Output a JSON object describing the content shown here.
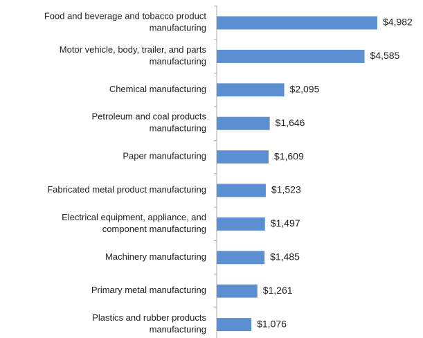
{
  "chart_data": {
    "type": "bar",
    "orientation": "horizontal",
    "categories": [
      "Food and beverage and tobacco product\nmanufacturing",
      "Motor vehicle, body, trailer, and parts\nmanufacturing",
      "Chemical manufacturing",
      "Petroleum and coal products\nmanufacturing",
      "Paper manufacturing",
      "Fabricated metal product manufacturing",
      "Electrical equipment, appliance, and\ncomponent manufacturing",
      "Machinery manufacturing",
      "Primary metal manufacturing",
      "Plastics and rubber products\nmanufacturing"
    ],
    "values": [
      4982,
      4585,
      2095,
      1646,
      1609,
      1523,
      1497,
      1485,
      1261,
      1076
    ],
    "value_labels": [
      "$4,982",
      "$4,585",
      "$2,095",
      "$1,646",
      "$1,609",
      "$1,523",
      "$1,497",
      "$1,485",
      "$1,261",
      "$1,076"
    ],
    "color": "#5b8fd1"
  }
}
